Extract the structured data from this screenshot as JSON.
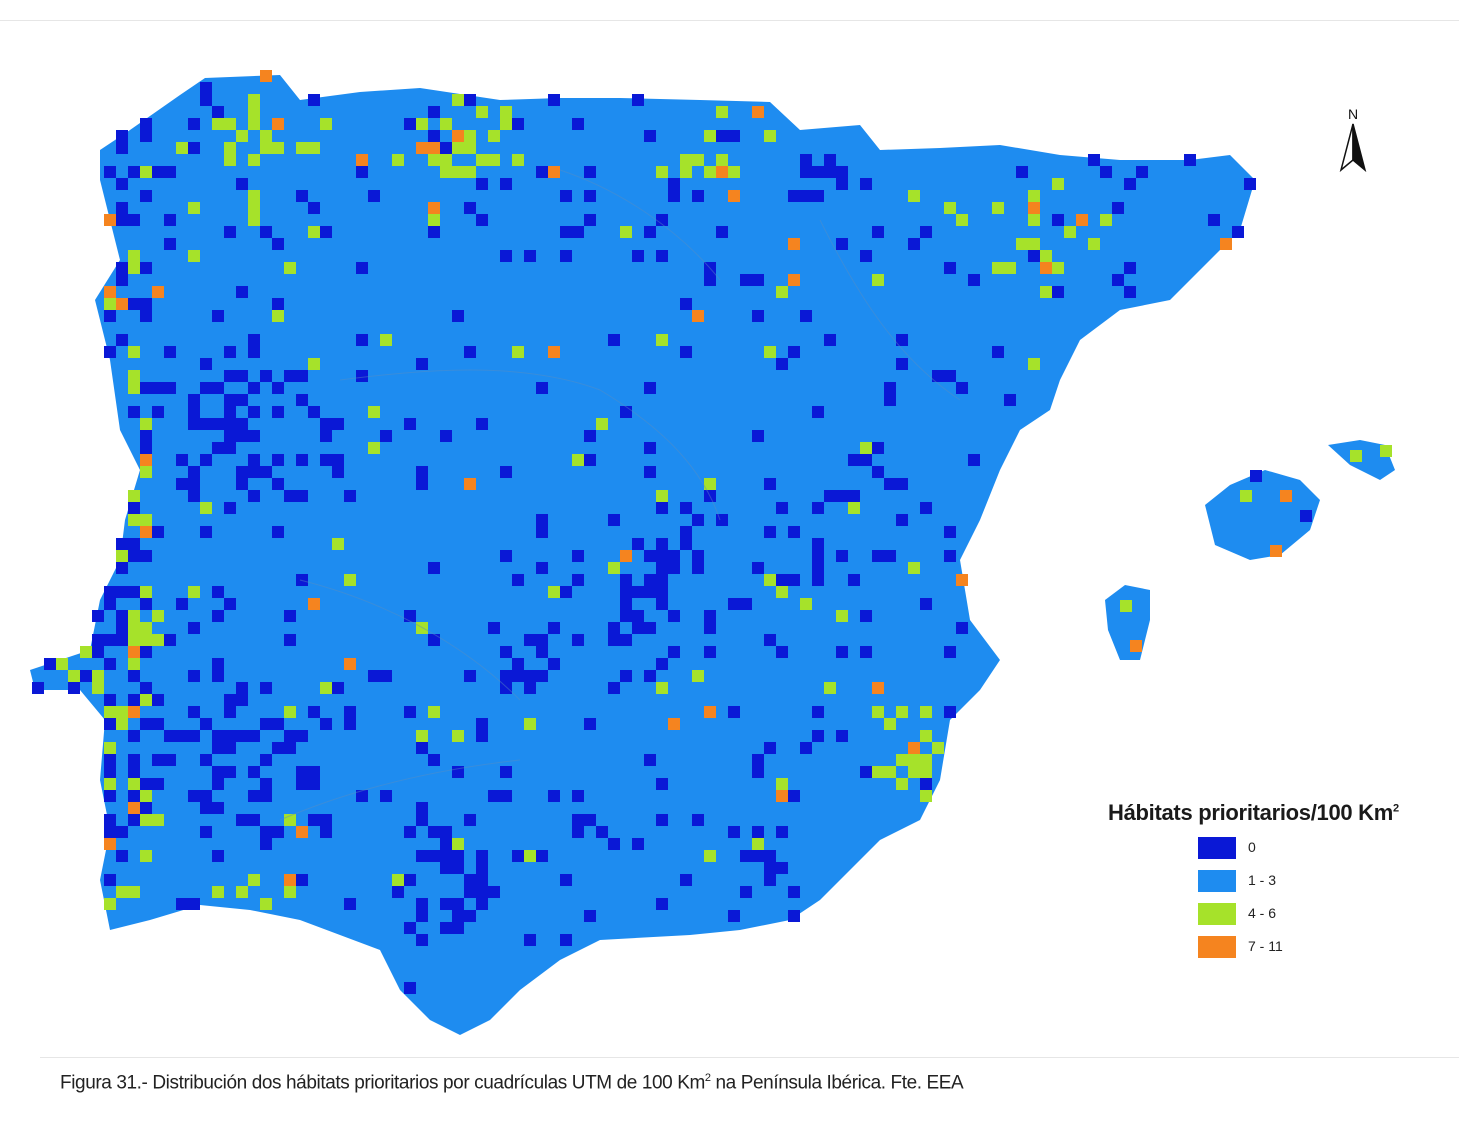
{
  "legend": {
    "title": "Hábitats prioritarios/100 Km",
    "title_sup": "2",
    "items": [
      {
        "label": "0",
        "color": "#0a18d6"
      },
      {
        "label": "1 - 3",
        "color": "#1e8cf0"
      },
      {
        "label": "4 - 6",
        "color": "#a6e22a"
      },
      {
        "label": "7 - 11",
        "color": "#f5841f"
      }
    ]
  },
  "north_arrow": {
    "label": "N"
  },
  "caption": {
    "before_sup": "Figura 31.- Distribución dos hábitats prioritarios por cuadrículas UTM de 100 Km",
    "sup": "2",
    "after_sup": " na Península Ibérica. Fte. EEA"
  }
}
